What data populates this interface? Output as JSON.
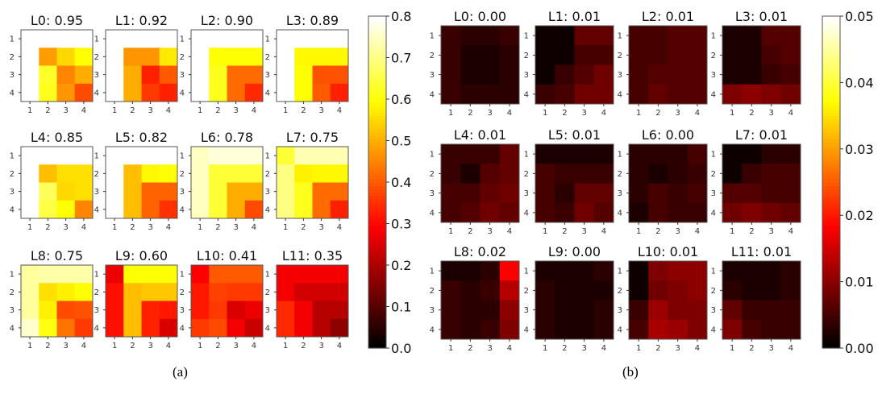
{
  "chart_data": [
    {
      "type": "heatmap",
      "caption": "(a)",
      "colormap": "hot",
      "colorbar": {
        "range": [
          0.0,
          0.8
        ],
        "ticks": [
          "0.0",
          "0.1",
          "0.2",
          "0.3",
          "0.4",
          "0.5",
          "0.6",
          "0.7",
          "0.8"
        ]
      },
      "tick_labels": [
        "1",
        "2",
        "3",
        "4"
      ],
      "panels": [
        {
          "title": "L0: 0.95",
          "values": [
            [
              0.8,
              0.8,
              0.8,
              0.8
            ],
            [
              0.8,
              0.48,
              0.55,
              0.6
            ],
            [
              0.8,
              0.63,
              0.45,
              0.5
            ],
            [
              0.8,
              0.62,
              0.47,
              0.38
            ]
          ]
        },
        {
          "title": "L1: 0.92",
          "values": [
            [
              0.8,
              0.8,
              0.8,
              0.8
            ],
            [
              0.8,
              0.47,
              0.47,
              0.57
            ],
            [
              0.8,
              0.5,
              0.33,
              0.4
            ],
            [
              0.8,
              0.5,
              0.36,
              0.33
            ]
          ]
        },
        {
          "title": "L2: 0.90",
          "values": [
            [
              0.8,
              0.8,
              0.8,
              0.8
            ],
            [
              0.8,
              0.6,
              0.6,
              0.6
            ],
            [
              0.8,
              0.62,
              0.42,
              0.42
            ],
            [
              0.8,
              0.62,
              0.42,
              0.34
            ]
          ]
        },
        {
          "title": "L3: 0.89",
          "values": [
            [
              0.8,
              0.8,
              0.8,
              0.8
            ],
            [
              0.8,
              0.59,
              0.59,
              0.59
            ],
            [
              0.8,
              0.6,
              0.39,
              0.39
            ],
            [
              0.8,
              0.6,
              0.4,
              0.33
            ]
          ]
        },
        {
          "title": "L4: 0.85",
          "values": [
            [
              0.8,
              0.8,
              0.8,
              0.8
            ],
            [
              0.8,
              0.52,
              0.56,
              0.56
            ],
            [
              0.8,
              0.67,
              0.55,
              0.56
            ],
            [
              0.8,
              0.65,
              0.6,
              0.45
            ]
          ]
        },
        {
          "title": "L5: 0.82",
          "values": [
            [
              0.8,
              0.8,
              0.8,
              0.8
            ],
            [
              0.8,
              0.52,
              0.59,
              0.6
            ],
            [
              0.8,
              0.52,
              0.41,
              0.41
            ],
            [
              0.8,
              0.52,
              0.41,
              0.35
            ]
          ]
        },
        {
          "title": "L6: 0.78",
          "values": [
            [
              0.75,
              0.77,
              0.77,
              0.77
            ],
            [
              0.75,
              0.64,
              0.64,
              0.64
            ],
            [
              0.75,
              0.64,
              0.5,
              0.5
            ],
            [
              0.75,
              0.64,
              0.5,
              0.38
            ]
          ]
        },
        {
          "title": "L7: 0.75",
          "values": [
            [
              0.64,
              0.74,
              0.74,
              0.74
            ],
            [
              0.7,
              0.58,
              0.59,
              0.59
            ],
            [
              0.7,
              0.62,
              0.42,
              0.42
            ],
            [
              0.7,
              0.62,
              0.42,
              0.33
            ]
          ]
        },
        {
          "title": "L8: 0.75",
          "values": [
            [
              0.72,
              0.73,
              0.73,
              0.73
            ],
            [
              0.72,
              0.56,
              0.58,
              0.6
            ],
            [
              0.72,
              0.58,
              0.38,
              0.39
            ],
            [
              0.76,
              0.61,
              0.43,
              0.36
            ]
          ]
        },
        {
          "title": "L9: 0.60",
          "values": [
            [
              0.27,
              0.6,
              0.6,
              0.6
            ],
            [
              0.31,
              0.52,
              0.53,
              0.53
            ],
            [
              0.31,
              0.52,
              0.33,
              0.32
            ],
            [
              0.31,
              0.52,
              0.33,
              0.25
            ]
          ]
        },
        {
          "title": "L10: 0.41",
          "values": [
            [
              0.29,
              0.4,
              0.4,
              0.4
            ],
            [
              0.32,
              0.37,
              0.36,
              0.36
            ],
            [
              0.32,
              0.36,
              0.25,
              0.27
            ],
            [
              0.36,
              0.38,
              0.28,
              0.23
            ]
          ]
        },
        {
          "title": "L11: 0.35",
          "values": [
            [
              0.28,
              0.28,
              0.28,
              0.28
            ],
            [
              0.28,
              0.24,
              0.24,
              0.24
            ],
            [
              0.34,
              0.28,
              0.21,
              0.21
            ],
            [
              0.34,
              0.28,
              0.21,
              0.16
            ]
          ]
        }
      ]
    },
    {
      "type": "heatmap",
      "caption": "(b)",
      "colormap": "hot",
      "colorbar": {
        "range": [
          0.0,
          0.05
        ],
        "ticks": [
          "0.00",
          "0.01",
          "0.02",
          "0.03",
          "0.04",
          "0.05"
        ]
      },
      "tick_labels": [
        "1",
        "2",
        "3",
        "4"
      ],
      "panels": [
        {
          "title": "L0: 0.00",
          "values": [
            [
              0.004,
              0.003,
              0.003,
              0.004
            ],
            [
              0.004,
              0.002,
              0.002,
              0.003
            ],
            [
              0.004,
              0.002,
              0.002,
              0.003
            ],
            [
              0.004,
              0.003,
              0.003,
              0.003
            ]
          ]
        },
        {
          "title": "L1: 0.01",
          "values": [
            [
              0.001,
              0.001,
              0.007,
              0.007
            ],
            [
              0.001,
              0.001,
              0.005,
              0.005
            ],
            [
              0.001,
              0.004,
              0.006,
              0.008
            ],
            [
              0.004,
              0.005,
              0.008,
              0.008
            ]
          ]
        },
        {
          "title": "L2: 0.01",
          "values": [
            [
              0.005,
              0.005,
              0.006,
              0.006
            ],
            [
              0.005,
              0.005,
              0.006,
              0.006
            ],
            [
              0.005,
              0.006,
              0.006,
              0.006
            ],
            [
              0.005,
              0.007,
              0.006,
              0.006
            ]
          ]
        },
        {
          "title": "L3: 0.01",
          "values": [
            [
              0.002,
              0.002,
              0.006,
              0.006
            ],
            [
              0.002,
              0.002,
              0.005,
              0.006
            ],
            [
              0.002,
              0.002,
              0.004,
              0.005
            ],
            [
              0.009,
              0.01,
              0.009,
              0.008
            ]
          ]
        },
        {
          "title": "L4: 0.01",
          "values": [
            [
              0.004,
              0.004,
              0.004,
              0.007
            ],
            [
              0.004,
              0.002,
              0.006,
              0.007
            ],
            [
              0.005,
              0.005,
              0.007,
              0.008
            ],
            [
              0.005,
              0.006,
              0.008,
              0.007
            ]
          ]
        },
        {
          "title": "L5: 0.01",
          "values": [
            [
              0.002,
              0.002,
              0.002,
              0.002
            ],
            [
              0.005,
              0.004,
              0.004,
              0.004
            ],
            [
              0.005,
              0.003,
              0.007,
              0.007
            ],
            [
              0.005,
              0.004,
              0.008,
              0.006
            ]
          ]
        },
        {
          "title": "L6: 0.00",
          "values": [
            [
              0.003,
              0.003,
              0.003,
              0.005
            ],
            [
              0.003,
              0.002,
              0.003,
              0.004
            ],
            [
              0.003,
              0.005,
              0.004,
              0.005
            ],
            [
              0.002,
              0.005,
              0.004,
              0.004
            ]
          ]
        },
        {
          "title": "L7: 0.01",
          "values": [
            [
              0.001,
              0.001,
              0.003,
              0.003
            ],
            [
              0.001,
              0.004,
              0.005,
              0.005
            ],
            [
              0.006,
              0.006,
              0.005,
              0.005
            ],
            [
              0.008,
              0.009,
              0.008,
              0.007
            ]
          ]
        },
        {
          "title": "L8: 0.02",
          "values": [
            [
              0.002,
              0.002,
              0.003,
              0.018
            ],
            [
              0.004,
              0.003,
              0.004,
              0.013
            ],
            [
              0.004,
              0.003,
              0.003,
              0.01
            ],
            [
              0.004,
              0.003,
              0.004,
              0.009
            ]
          ]
        },
        {
          "title": "L9: 0.00",
          "values": [
            [
              0.002,
              0.002,
              0.002,
              0.003
            ],
            [
              0.003,
              0.002,
              0.002,
              0.002
            ],
            [
              0.003,
              0.002,
              0.002,
              0.003
            ],
            [
              0.003,
              0.002,
              0.002,
              0.003
            ]
          ]
        },
        {
          "title": "L10: 0.01",
          "values": [
            [
              0.001,
              0.009,
              0.01,
              0.01
            ],
            [
              0.001,
              0.008,
              0.009,
              0.01
            ],
            [
              0.004,
              0.011,
              0.009,
              0.009
            ],
            [
              0.005,
              0.012,
              0.011,
              0.009
            ]
          ]
        },
        {
          "title": "L11: 0.01",
          "values": [
            [
              0.002,
              0.002,
              0.002,
              0.003
            ],
            [
              0.003,
              0.002,
              0.002,
              0.003
            ],
            [
              0.007,
              0.004,
              0.004,
              0.004
            ],
            [
              0.009,
              0.005,
              0.004,
              0.004
            ]
          ]
        }
      ]
    }
  ]
}
